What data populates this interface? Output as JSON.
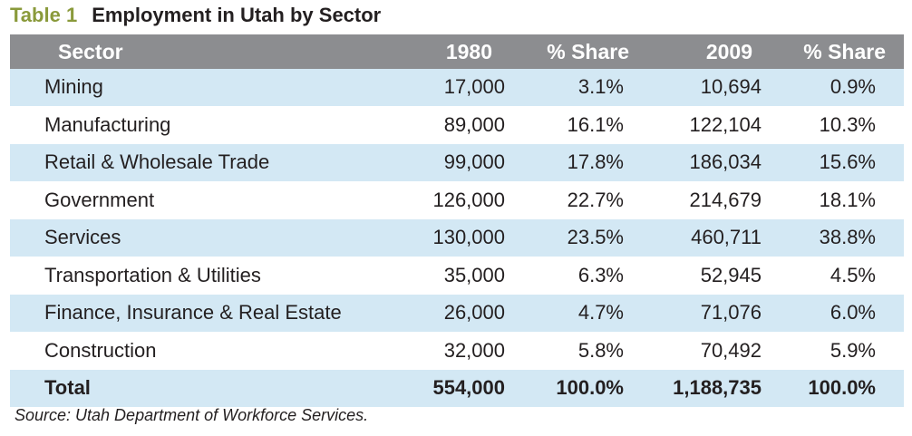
{
  "table": {
    "number": "Table 1",
    "title": "Employment in Utah by Sector",
    "headers": [
      "Sector",
      "1980",
      "% Share",
      "2009",
      "% Share"
    ],
    "rows": [
      {
        "sector": "Mining",
        "y1980": "17,000",
        "share1980": "3.1%",
        "y2009": "10,694",
        "share2009": "0.9%"
      },
      {
        "sector": "Manufacturing",
        "y1980": "89,000",
        "share1980": "16.1%",
        "y2009": "122,104",
        "share2009": "10.3%"
      },
      {
        "sector": "Retail & Wholesale Trade",
        "y1980": "99,000",
        "share1980": "17.8%",
        "y2009": "186,034",
        "share2009": "15.6%"
      },
      {
        "sector": "Government",
        "y1980": "126,000",
        "share1980": "22.7%",
        "y2009": "214,679",
        "share2009": "18.1%"
      },
      {
        "sector": "Services",
        "y1980": "130,000",
        "share1980": "23.5%",
        "y2009": "460,711",
        "share2009": "38.8%"
      },
      {
        "sector": "Transportation & Utilities",
        "y1980": "35,000",
        "share1980": "6.3%",
        "y2009": "52,945",
        "share2009": "4.5%"
      },
      {
        "sector": "Finance, Insurance & Real Estate",
        "y1980": "26,000",
        "share1980": "4.7%",
        "y2009": "71,076",
        "share2009": "6.0%"
      },
      {
        "sector": "Construction",
        "y1980": "32,000",
        "share1980": "5.8%",
        "y2009": "70,492",
        "share2009": "5.9%"
      }
    ],
    "total": {
      "sector": "Total",
      "y1980": "554,000",
      "share1980": "100.0%",
      "y2009": "1,188,735",
      "share2009": "100.0%"
    },
    "source": "Source: Utah Department of Workforce Services."
  },
  "colors": {
    "header_bg": "#8c8d90",
    "shaded_row": "#d3e8f4",
    "table_number": "#8a9a3b"
  }
}
